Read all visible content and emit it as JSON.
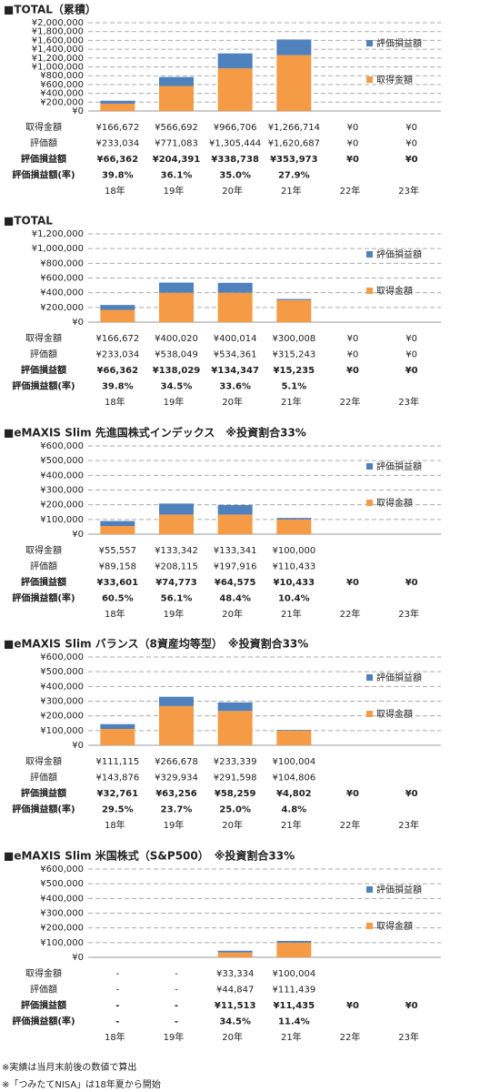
{
  "chart_data": [
    {
      "type": "bar",
      "title": "■TOTAL（累積）",
      "categories": [
        "18年",
        "19年",
        "20年",
        "21年",
        "22年",
        "23年"
      ],
      "series": [
        {
          "name": "取得金額",
          "color": "#f59a45",
          "values": [
            166672,
            566692,
            966706,
            1266714,
            0,
            0
          ]
        },
        {
          "name": "評価損益額",
          "color": "#4f81bd",
          "values": [
            66362,
            204391,
            338738,
            353973,
            0,
            0
          ]
        }
      ],
      "ylim": [
        0,
        2000000
      ],
      "yticks": [
        {
          "value": 0,
          "label": "¥0"
        },
        {
          "value": 200000,
          "label": "¥200,000"
        },
        {
          "value": 400000,
          "label": "¥400,000"
        },
        {
          "value": 600000,
          "label": "¥600,000"
        },
        {
          "value": 800000,
          "label": "¥800,000"
        },
        {
          "value": 1000000,
          "label": "¥1,000,000"
        },
        {
          "value": 1200000,
          "label": "¥1,200,000"
        },
        {
          "value": 1400000,
          "label": "¥1,400,000"
        },
        {
          "value": 1600000,
          "label": "¥1,600,000"
        },
        {
          "value": 1800000,
          "label": "¥1,800,000"
        },
        {
          "value": 2000000,
          "label": "¥2,000,000"
        }
      ],
      "grid": true,
      "stacked": true,
      "legend": "right",
      "table": {
        "rows": [
          {
            "label": "取得金額",
            "cells": [
              "¥166,672",
              "¥566,692",
              "¥966,706",
              "¥1,266,714",
              "¥0",
              "¥0"
            ]
          },
          {
            "label": "評価額",
            "cells": [
              "¥233,034",
              "¥771,083",
              "¥1,305,444",
              "¥1,620,687",
              "¥0",
              "¥0"
            ]
          },
          {
            "label": "評価損益額",
            "cells": [
              "¥66,362",
              "¥204,391",
              "¥338,738",
              "¥353,973",
              "¥0",
              "¥0"
            ]
          },
          {
            "label": "評価損益額(率)",
            "cells": [
              "39.8%",
              "36.1%",
              "35.0%",
              "27.9%",
              null,
              null
            ]
          }
        ]
      }
    },
    {
      "type": "bar",
      "title": "■TOTAL",
      "categories": [
        "18年",
        "19年",
        "20年",
        "21年",
        "22年",
        "23年"
      ],
      "series": [
        {
          "name": "取得金額",
          "color": "#f59a45",
          "values": [
            166672,
            400020,
            400014,
            300008,
            0,
            0
          ]
        },
        {
          "name": "評価損益額",
          "color": "#4f81bd",
          "values": [
            66362,
            138029,
            134347,
            15235,
            0,
            0
          ]
        }
      ],
      "ylim": [
        0,
        1200000
      ],
      "yticks": [
        {
          "value": 0,
          "label": "¥0"
        },
        {
          "value": 200000,
          "label": "¥200,000"
        },
        {
          "value": 400000,
          "label": "¥400,000"
        },
        {
          "value": 600000,
          "label": "¥600,000"
        },
        {
          "value": 800000,
          "label": "¥800,000"
        },
        {
          "value": 1000000,
          "label": "¥1,000,000"
        },
        {
          "value": 1200000,
          "label": "¥1,200,000"
        }
      ],
      "grid": true,
      "stacked": true,
      "legend": "right",
      "table": {
        "rows": [
          {
            "label": "取得金額",
            "cells": [
              "¥166,672",
              "¥400,020",
              "¥400,014",
              "¥300,008",
              "¥0",
              "¥0"
            ]
          },
          {
            "label": "評価額",
            "cells": [
              "¥233,034",
              "¥538,049",
              "¥534,361",
              "¥315,243",
              "¥0",
              "¥0"
            ]
          },
          {
            "label": "評価損益額",
            "cells": [
              "¥66,362",
              "¥138,029",
              "¥134,347",
              "¥15,235",
              "¥0",
              "¥0"
            ]
          },
          {
            "label": "評価損益額(率)",
            "cells": [
              "39.8%",
              "34.5%",
              "33.6%",
              "5.1%",
              null,
              null
            ]
          }
        ]
      }
    },
    {
      "type": "bar",
      "title": "■eMAXIS Slim 先進国株式インデックス　※投資割合33%",
      "categories": [
        "18年",
        "19年",
        "20年",
        "21年",
        "22年",
        "23年"
      ],
      "series": [
        {
          "name": "取得金額",
          "color": "#f59a45",
          "values": [
            55557,
            133342,
            133341,
            100000,
            null,
            null
          ]
        },
        {
          "name": "評価損益額",
          "color": "#4f81bd",
          "values": [
            33601,
            74773,
            64575,
            10433,
            0,
            0
          ]
        }
      ],
      "ylim": [
        0,
        600000
      ],
      "yticks": [
        {
          "value": 0,
          "label": "¥0"
        },
        {
          "value": 100000,
          "label": "¥100,000"
        },
        {
          "value": 200000,
          "label": "¥200,000"
        },
        {
          "value": 300000,
          "label": "¥300,000"
        },
        {
          "value": 400000,
          "label": "¥400,000"
        },
        {
          "value": 500000,
          "label": "¥500,000"
        },
        {
          "value": 600000,
          "label": "¥600,000"
        }
      ],
      "grid": true,
      "stacked": true,
      "legend": "right",
      "table": {
        "rows": [
          {
            "label": "取得金額",
            "cells": [
              "¥55,557",
              "¥133,342",
              "¥133,341",
              "¥100,000",
              null,
              null
            ]
          },
          {
            "label": "評価額",
            "cells": [
              "¥89,158",
              "¥208,115",
              "¥197,916",
              "¥110,433",
              null,
              null
            ]
          },
          {
            "label": "評価損益額",
            "cells": [
              "¥33,601",
              "¥74,773",
              "¥64,575",
              "¥10,433",
              "¥0",
              "¥0"
            ]
          },
          {
            "label": "評価損益額(率)",
            "cells": [
              "60.5%",
              "56.1%",
              "48.4%",
              "10.4%",
              null,
              null
            ]
          }
        ]
      }
    },
    {
      "type": "bar",
      "title": "■eMAXIS Slim バランス（8資産均等型）　※投資割合33%",
      "categories": [
        "18年",
        "19年",
        "20年",
        "21年",
        "22年",
        "23年"
      ],
      "series": [
        {
          "name": "取得金額",
          "color": "#f59a45",
          "values": [
            111115,
            266678,
            233339,
            100004,
            null,
            null
          ]
        },
        {
          "name": "評価損益額",
          "color": "#4f81bd",
          "values": [
            32761,
            63256,
            58259,
            4802,
            0,
            0
          ]
        }
      ],
      "ylim": [
        0,
        600000
      ],
      "yticks": [
        {
          "value": 0,
          "label": "¥0"
        },
        {
          "value": 100000,
          "label": "¥100,000"
        },
        {
          "value": 200000,
          "label": "¥200,000"
        },
        {
          "value": 300000,
          "label": "¥300,000"
        },
        {
          "value": 400000,
          "label": "¥400,000"
        },
        {
          "value": 500000,
          "label": "¥500,000"
        },
        {
          "value": 600000,
          "label": "¥600,000"
        }
      ],
      "grid": true,
      "stacked": true,
      "legend": "right",
      "table": {
        "rows": [
          {
            "label": "取得金額",
            "cells": [
              "¥111,115",
              "¥266,678",
              "¥233,339",
              "¥100,004",
              null,
              null
            ]
          },
          {
            "label": "評価額",
            "cells": [
              "¥143,876",
              "¥329,934",
              "¥291,598",
              "¥104,806",
              null,
              null
            ]
          },
          {
            "label": "評価損益額",
            "cells": [
              "¥32,761",
              "¥63,256",
              "¥58,259",
              "¥4,802",
              "¥0",
              "¥0"
            ]
          },
          {
            "label": "評価損益額(率)",
            "cells": [
              "29.5%",
              "23.7%",
              "25.0%",
              "4.8%",
              null,
              null
            ]
          }
        ]
      }
    },
    {
      "type": "bar",
      "title": "■eMAXIS Slim 米国株式（S&P500）　※投資割合33%",
      "categories": [
        "18年",
        "19年",
        "20年",
        "21年",
        "22年",
        "23年"
      ],
      "series": [
        {
          "name": "取得金額",
          "color": "#f59a45",
          "values": [
            null,
            null,
            33334,
            100004,
            null,
            null
          ]
        },
        {
          "name": "評価損益額",
          "color": "#4f81bd",
          "values": [
            null,
            null,
            11513,
            11435,
            0,
            0
          ]
        }
      ],
      "ylim": [
        0,
        600000
      ],
      "yticks": [
        {
          "value": 0,
          "label": "¥0"
        },
        {
          "value": 100000,
          "label": "¥100,000"
        },
        {
          "value": 200000,
          "label": "¥200,000"
        },
        {
          "value": 300000,
          "label": "¥300,000"
        },
        {
          "value": 400000,
          "label": "¥400,000"
        },
        {
          "value": 500000,
          "label": "¥500,000"
        },
        {
          "value": 600000,
          "label": "¥600,000"
        }
      ],
      "grid": true,
      "stacked": true,
      "legend": "right",
      "table": {
        "rows": [
          {
            "label": "取得金額",
            "cells": [
              "-",
              "-",
              "¥33,334",
              "¥100,004",
              null,
              null
            ]
          },
          {
            "label": "評価額",
            "cells": [
              "-",
              "-",
              "¥44,847",
              "¥111,439",
              null,
              null
            ]
          },
          {
            "label": "評価損益額",
            "cells": [
              "-",
              "-",
              "¥11,513",
              "¥11,435",
              "¥0",
              "¥0"
            ]
          },
          {
            "label": "評価損益額(率)",
            "cells": [
              "-",
              "-",
              "34.5%",
              "11.4%",
              null,
              null
            ]
          }
        ]
      }
    }
  ],
  "notes": [
    "※実績は当月末前後の数値で算出",
    "※「つみたてNISA」は18年夏から開始"
  ]
}
